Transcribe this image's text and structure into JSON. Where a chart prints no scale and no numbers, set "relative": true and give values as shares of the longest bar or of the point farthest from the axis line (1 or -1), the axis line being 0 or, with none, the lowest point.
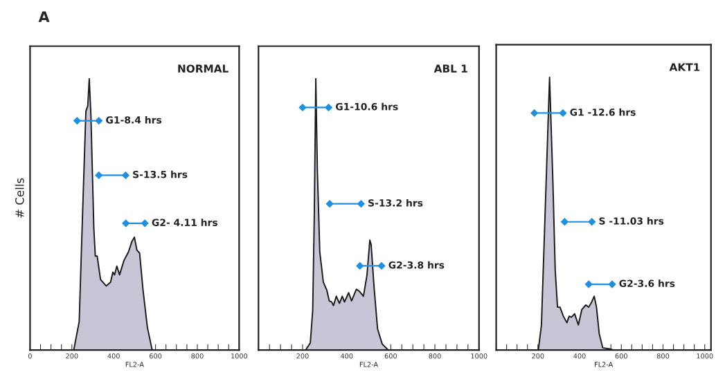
{
  "chart_data": [
    {
      "type": "area",
      "relative": true,
      "title": "A",
      "xlabel": "FL2-A",
      "ylabel": "# Cells",
      "xlim": [
        0,
        1000
      ],
      "tick_labels": "x",
      "grid": false,
      "xticks": [
        0,
        {
          "value": 50,
          "label": null
        },
        {
          "value": 100,
          "label": null
        },
        {
          "value": 150,
          "label": null
        },
        200,
        {
          "value": 250,
          "label": null
        },
        {
          "value": 300,
          "label": null
        },
        {
          "value": 350,
          "label": null
        },
        400,
        {
          "value": 450,
          "label": null
        },
        {
          "value": 500,
          "label": null
        },
        {
          "value": 550,
          "label": null
        },
        600,
        {
          "value": 650,
          "label": null
        },
        {
          "value": 700,
          "label": null
        },
        {
          "value": 750,
          "label": null
        },
        800,
        {
          "value": 850,
          "label": null
        },
        {
          "value": 900,
          "label": null
        },
        {
          "value": 950,
          "label": null
        },
        1000
      ],
      "x": [
        0,
        209,
        235,
        251,
        267,
        276,
        283,
        291,
        305,
        312,
        321,
        337,
        364,
        385,
        396,
        404,
        415,
        428,
        449,
        471,
        487,
        499,
        511,
        524,
        540,
        561,
        583,
        590,
        1000
      ],
      "series": [
        {
          "color": "#c9c5d6",
          "values": [
            0,
            0,
            0.105,
            0.5,
            0.88,
            0.9,
            1.0,
            0.866,
            0.448,
            0.346,
            0.346,
            0.26,
            0.236,
            0.25,
            0.287,
            0.277,
            0.309,
            0.277,
            0.33,
            0.362,
            0.4,
            0.416,
            0.368,
            0.357,
            0.223,
            0.084,
            0.003,
            0,
            0
          ]
        },
        {
          "type": "line",
          "name": "G1-8.4 hrs",
          "marker": "diamond",
          "color": "#1f8fe0",
          "x": [
            225,
            329
          ],
          "values": [
            0.845,
            0.845
          ]
        },
        {
          "type": "line",
          "name": "S-13.5 hrs",
          "marker": "diamond",
          "color": "#1f8fe0",
          "x": [
            329,
            457
          ],
          "values": [
            0.644,
            0.644
          ]
        },
        {
          "type": "line",
          "name": "G2- 4.11 hrs",
          "marker": "diamond",
          "color": "#1f8fe0",
          "x": [
            458,
            549
          ],
          "values": [
            0.467,
            0.467
          ]
        }
      ],
      "annotations": [
        "NORMAL"
      ]
    },
    {
      "type": "area",
      "relative": true,
      "xlabel": "FL2-A",
      "xlim": [
        0,
        1000
      ],
      "tick_labels": "x",
      "grid": false,
      "xticks": [
        {
          "value": 0,
          "label": null
        },
        {
          "value": 50,
          "label": null
        },
        {
          "value": 100,
          "label": null
        },
        {
          "value": 150,
          "label": null
        },
        200,
        {
          "value": 250,
          "label": null
        },
        {
          "value": 300,
          "label": null
        },
        {
          "value": 350,
          "label": null
        },
        400,
        {
          "value": 450,
          "label": null
        },
        {
          "value": 500,
          "label": null
        },
        {
          "value": 550,
          "label": null
        },
        600,
        {
          "value": 650,
          "label": null
        },
        {
          "value": 700,
          "label": null
        },
        {
          "value": 750,
          "label": null
        },
        800,
        {
          "value": 850,
          "label": null
        },
        {
          "value": 900,
          "label": null
        },
        {
          "value": 950,
          "label": null
        },
        1000
      ],
      "x": [
        0,
        214,
        235,
        246,
        253,
        260,
        267,
        278,
        294,
        310,
        321,
        332,
        340,
        353,
        367,
        380,
        390,
        409,
        422,
        444,
        458,
        476,
        492,
        505,
        511,
        524,
        540,
        561,
        588,
        1000
      ],
      "series": [
        {
          "color": "#c9c5d6",
          "values": [
            0,
            0,
            0.026,
            0.147,
            0.49,
            1.0,
            0.664,
            0.362,
            0.25,
            0.22,
            0.181,
            0.177,
            0.164,
            0.198,
            0.172,
            0.198,
            0.177,
            0.211,
            0.181,
            0.224,
            0.216,
            0.198,
            0.276,
            0.405,
            0.388,
            0.233,
            0.078,
            0.022,
            0,
            0
          ]
        },
        {
          "type": "line",
          "name": "G1-10.6 hrs",
          "marker": "diamond",
          "color": "#1f8fe0",
          "x": [
            200,
            318
          ],
          "values": [
            0.894,
            0.894
          ]
        },
        {
          "type": "line",
          "name": "S-13.2 hrs",
          "marker": "diamond",
          "color": "#1f8fe0",
          "x": [
            323,
            465
          ],
          "values": [
            0.539,
            0.539
          ]
        },
        {
          "type": "line",
          "name": "G2-3.8 hrs",
          "marker": "diamond",
          "color": "#1f8fe0",
          "x": [
            460,
            558
          ],
          "values": [
            0.31,
            0.31
          ]
        }
      ],
      "annotations": [
        "ABL 1"
      ]
    },
    {
      "type": "area",
      "relative": true,
      "xlabel": "FL2-A",
      "xlim": [
        0,
        1030
      ],
      "tick_labels": "x",
      "grid": false,
      "xticks": [
        {
          "value": 0,
          "label": null
        },
        {
          "value": 50,
          "label": null
        },
        {
          "value": 100,
          "label": null
        },
        {
          "value": 150,
          "label": null
        },
        200,
        {
          "value": 250,
          "label": null
        },
        {
          "value": 300,
          "label": null
        },
        {
          "value": 350,
          "label": null
        },
        400,
        {
          "value": 450,
          "label": null
        },
        {
          "value": 500,
          "label": null
        },
        {
          "value": 550,
          "label": null
        },
        600,
        {
          "value": 650,
          "label": null
        },
        {
          "value": 700,
          "label": null
        },
        {
          "value": 750,
          "label": null
        },
        800,
        {
          "value": 850,
          "label": null
        },
        {
          "value": 900,
          "label": null
        },
        {
          "value": 950,
          "label": null
        },
        1000
      ],
      "x": [
        0,
        202,
        217,
        236,
        256,
        272,
        283,
        294,
        306,
        322,
        339,
        350,
        361,
        376,
        394,
        411,
        430,
        444,
        456,
        470,
        481,
        494,
        511,
        544,
        561,
        1030
      ],
      "series": [
        {
          "color": "#c9c5d6",
          "values": [
            0,
            0,
            0.092,
            0.534,
            1.0,
            0.614,
            0.293,
            0.157,
            0.157,
            0.124,
            0.1,
            0.124,
            0.12,
            0.133,
            0.092,
            0.149,
            0.165,
            0.157,
            0.173,
            0.197,
            0.157,
            0.06,
            0.008,
            0.004,
            0,
            0
          ]
        },
        {
          "type": "line",
          "name": "G1 -12.6 hrs",
          "marker": "diamond",
          "color": "#1f8fe0",
          "x": [
            183,
            320
          ],
          "values": [
            0.869,
            0.869
          ]
        },
        {
          "type": "line",
          "name": "S -11.03 hrs",
          "marker": "diamond",
          "color": "#1f8fe0",
          "x": [
            328,
            459
          ],
          "values": [
            0.47,
            0.47
          ]
        },
        {
          "type": "line",
          "name": "G2-3.6 hrs",
          "marker": "diamond",
          "color": "#1f8fe0",
          "x": [
            444,
            556
          ],
          "values": [
            0.241,
            0.241
          ]
        }
      ],
      "annotations": [
        "AKT1"
      ]
    }
  ]
}
